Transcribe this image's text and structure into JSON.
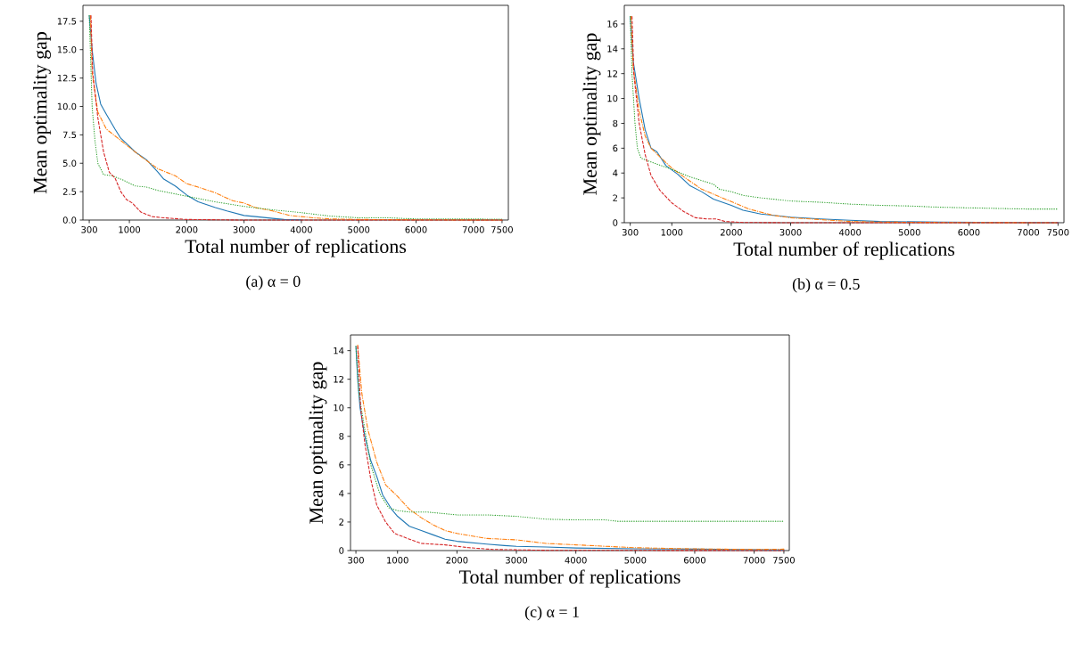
{
  "chart_data": [
    {
      "type": "line",
      "xlabel": "Total number of replications",
      "ylabel": "Mean optimality gap",
      "annotations": [
        "(a) α = 0"
      ],
      "xlim": [
        190,
        7610
      ],
      "ylim": [
        0,
        18.9
      ],
      "xticks": [
        300,
        1000,
        2000,
        3000,
        4000,
        5000,
        6000,
        7000,
        7500
      ],
      "yticks": [
        {
          "value": 0,
          "label": "0.0"
        },
        {
          "value": 2.5,
          "label": "2.5"
        },
        {
          "value": 5,
          "label": "5.0"
        },
        {
          "value": 7.5,
          "label": "7.5"
        },
        {
          "value": 10,
          "label": "10.0"
        },
        {
          "value": 12.5,
          "label": "12.5"
        },
        {
          "value": 15,
          "label": "15.0"
        },
        {
          "value": 17.5,
          "label": "17.5"
        }
      ],
      "grid": false,
      "series": [
        {
          "color": "#1f77b4",
          "line_style": "solid",
          "x": [
            300,
            350,
            420,
            500,
            600,
            750,
            850,
            1000,
            1100,
            1300,
            1500,
            1600,
            1800,
            2000,
            2200,
            2500,
            2700,
            3000,
            3200,
            3500,
            3700,
            4000
          ],
          "values": [
            18,
            15,
            12,
            10.2,
            9.3,
            8,
            7.2,
            6.5,
            6,
            5.3,
            4.2,
            3.6,
            3,
            2.2,
            1.6,
            1.1,
            0.8,
            0.4,
            0.3,
            0.15,
            0.05,
            0.02
          ]
        },
        {
          "color": "#ff7f0e",
          "line_style": "dashdot",
          "x": [
            320,
            350,
            450,
            600,
            800,
            1000,
            1200,
            1500,
            1800,
            2000,
            2200,
            2500,
            2800,
            3000,
            3200,
            3500,
            3800,
            4200,
            4500,
            5000,
            6000,
            7500
          ],
          "values": [
            18,
            13,
            9.5,
            8,
            7.2,
            6.4,
            5.6,
            4.5,
            3.9,
            3.2,
            2.9,
            2.4,
            1.7,
            1.5,
            1.1,
            0.8,
            0.4,
            0.2,
            0.1,
            0.05,
            0.02,
            0
          ]
        },
        {
          "color": "#2ca02c",
          "line_style": "dotted",
          "x": [
            300,
            350,
            400,
            450,
            550,
            700,
            900,
            1100,
            1300,
            1500,
            1800,
            2000,
            2500,
            3000,
            3500,
            4000,
            4500,
            5000,
            5500,
            6000,
            7500
          ],
          "values": [
            18,
            10,
            7,
            5,
            4,
            3.9,
            3.5,
            3,
            2.9,
            2.6,
            2.3,
            2.1,
            1.6,
            1.2,
            0.9,
            0.65,
            0.35,
            0.2,
            0.2,
            0.1,
            0.08
          ]
        },
        {
          "color": "#d62728",
          "line_style": "dashed",
          "x": [
            330,
            360,
            450,
            550,
            650,
            750,
            850,
            950,
            1050,
            1200,
            1400,
            1600,
            2000,
            3000,
            7500
          ],
          "values": [
            18,
            13,
            9,
            6,
            4.2,
            3.7,
            2.5,
            1.8,
            1.5,
            0.7,
            0.3,
            0.2,
            0.05,
            0,
            0
          ]
        }
      ]
    },
    {
      "type": "line",
      "xlabel": "Total number of replications",
      "ylabel": "Mean optimality gap",
      "annotations": [
        "(b) α = 0.5"
      ],
      "xlim": [
        200,
        7600
      ],
      "ylim": [
        0,
        17.5
      ],
      "xticks": [
        300,
        1000,
        2000,
        3000,
        4000,
        5000,
        6000,
        7000,
        7500
      ],
      "yticks": [
        0,
        2,
        4,
        6,
        8,
        10,
        12,
        14,
        16
      ],
      "grid": false,
      "series": [
        {
          "color": "#1f77b4",
          "line_style": "solid",
          "x": [
            300,
            350,
            450,
            550,
            650,
            750,
            900,
            1100,
            1300,
            1500,
            1700,
            2000,
            2200,
            2500,
            3000,
            3500,
            4000,
            4500,
            5500,
            7500
          ],
          "values": [
            16.6,
            13,
            10,
            7.5,
            6,
            5.7,
            4.6,
            3.9,
            3,
            2.5,
            1.9,
            1.4,
            1,
            0.7,
            0.45,
            0.3,
            0.2,
            0.1,
            0.05,
            0
          ]
        },
        {
          "color": "#ff7f0e",
          "line_style": "dashdot",
          "x": [
            312,
            350,
            450,
            550,
            650,
            800,
            1000,
            1200,
            1500,
            1800,
            2000,
            2300,
            2700,
            3000,
            3500,
            4000,
            4500,
            5500,
            7500
          ],
          "values": [
            16.6,
            12.5,
            9,
            7,
            6,
            5.3,
            4.4,
            3.7,
            2.7,
            2.1,
            1.7,
            1.1,
            0.6,
            0.4,
            0.25,
            0.1,
            0.05,
            0.02,
            0
          ]
        },
        {
          "color": "#2ca02c",
          "line_style": "dotted",
          "x": [
            300,
            330,
            380,
            420,
            480,
            700,
            1000,
            1300,
            1500,
            1700,
            1800,
            2000,
            2200,
            2500,
            3000,
            3500,
            4000,
            4500,
            5000,
            5500,
            6000,
            6500,
            7000,
            7500
          ],
          "values": [
            16.6,
            12,
            8,
            6,
            5.2,
            4.8,
            4.3,
            3.7,
            3.4,
            3.1,
            2.7,
            2.5,
            2.2,
            2,
            1.75,
            1.65,
            1.5,
            1.4,
            1.35,
            1.25,
            1.2,
            1.15,
            1.1,
            1.1
          ]
        },
        {
          "color": "#d62728",
          "line_style": "dashed",
          "x": [
            330,
            360,
            450,
            550,
            650,
            800,
            1000,
            1200,
            1400,
            1600,
            1750,
            1900,
            2200,
            3000,
            7500
          ],
          "values": [
            16.6,
            12,
            8,
            5.5,
            3.8,
            2.6,
            1.6,
            0.9,
            0.4,
            0.3,
            0.3,
            0.1,
            0.02,
            0,
            0
          ]
        }
      ]
    },
    {
      "type": "line",
      "xlabel": "Total number of replications",
      "ylabel": "Mean optimality gap",
      "annotations": [
        "(c) α = 1"
      ],
      "xlim": [
        209,
        7591
      ],
      "ylim": [
        0,
        15.1
      ],
      "xticks": [
        300,
        1000,
        2000,
        3000,
        4000,
        5000,
        6000,
        7000,
        7500
      ],
      "yticks": [
        0,
        2,
        4,
        6,
        8,
        10,
        12,
        14
      ],
      "grid": false,
      "series": [
        {
          "color": "#1f77b4",
          "line_style": "solid",
          "x": [
            300,
            330,
            370,
            450,
            550,
            650,
            750,
            900,
            1000,
            1200,
            1400,
            1600,
            1800,
            2000,
            2500,
            2800,
            3000,
            3500,
            4000,
            5000,
            6000,
            7500
          ],
          "values": [
            14.3,
            12,
            10,
            8,
            6.3,
            5.2,
            3.9,
            2.9,
            2.4,
            1.7,
            1.4,
            1.1,
            0.8,
            0.65,
            0.45,
            0.35,
            0.3,
            0.25,
            0.18,
            0.12,
            0.1,
            0.05
          ]
        },
        {
          "color": "#ff7f0e",
          "line_style": "dashdot",
          "x": [
            330,
            400,
            500,
            650,
            800,
            1000,
            1200,
            1400,
            1600,
            1800,
            2000,
            2500,
            3000,
            3500,
            4000,
            4500,
            5000,
            6000,
            7000,
            7500
          ],
          "values": [
            14.4,
            11,
            8.5,
            6.2,
            4.6,
            3.8,
            2.9,
            2.3,
            1.8,
            1.4,
            1.2,
            0.85,
            0.75,
            0.5,
            0.4,
            0.3,
            0.2,
            0.12,
            0.08,
            0.1
          ]
        },
        {
          "color": "#2ca02c",
          "line_style": "dotted",
          "x": [
            300,
            350,
            450,
            550,
            700,
            850,
            1000,
            1200,
            1500,
            2000,
            2500,
            3000,
            3500,
            4000,
            4500,
            4700,
            5500,
            7500
          ],
          "values": [
            14.3,
            11,
            8.5,
            6,
            4,
            3,
            2.8,
            2.7,
            2.7,
            2.5,
            2.5,
            2.4,
            2.2,
            2.15,
            2.15,
            2.05,
            2.05,
            2.05
          ]
        },
        {
          "color": "#d62728",
          "line_style": "dashed",
          "x": [
            330,
            380,
            450,
            550,
            650,
            800,
            950,
            1200,
            1400,
            1800,
            2200,
            2600,
            3500,
            7500
          ],
          "values": [
            14.3,
            10,
            7.5,
            5,
            3.2,
            2,
            1.2,
            0.8,
            0.5,
            0.4,
            0.2,
            0.08,
            0.02,
            0
          ]
        }
      ]
    }
  ]
}
